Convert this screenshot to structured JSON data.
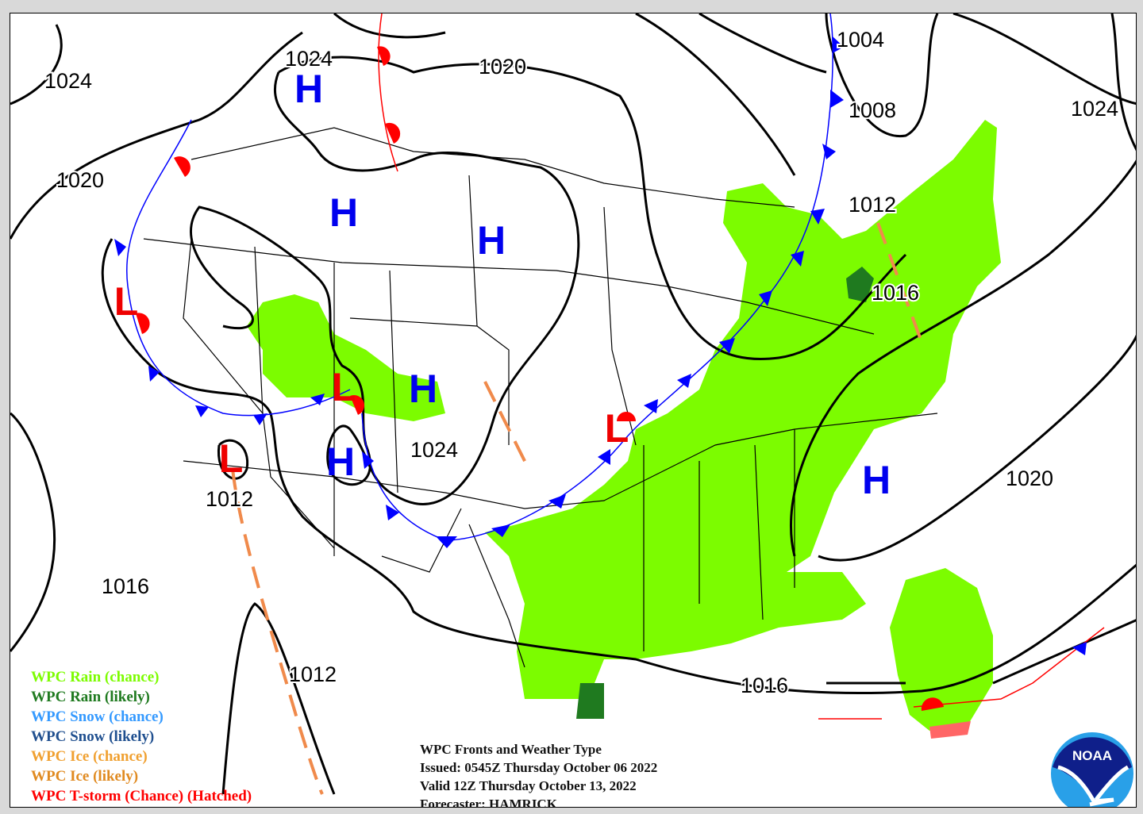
{
  "map_title": "WPC Fronts and Weather Type",
  "issued": "Issued: 0545Z Thursday October 06 2022",
  "valid": "Valid 12Z Thursday October 13, 2022",
  "forecaster": "Forecaster: HAMRICK",
  "logo_text": "NOAA",
  "legend": [
    {
      "label": "WPC Rain (chance)",
      "color": "#7cfc00"
    },
    {
      "label": "WPC Rain (likely)",
      "color": "#1f7a1f"
    },
    {
      "label": "WPC Snow (chance)",
      "color": "#3399ff"
    },
    {
      "label": "WPC Snow (likely)",
      "color": "#1f4f8f"
    },
    {
      "label": "WPC Ice (chance)",
      "color": "#f0a030"
    },
    {
      "label": "WPC Ice (likely)",
      "color": "#e08a20"
    },
    {
      "label": "WPC T-storm (Chance) (Hatched)",
      "color": "#ff0000"
    }
  ],
  "isobar_labels": [
    "1024",
    "1024",
    "1020",
    "1004",
    "1008",
    "1024",
    "1020",
    "1012",
    "1016",
    "1024",
    "1012",
    "1020",
    "1016",
    "1012",
    "1016"
  ],
  "pressure_centers": [
    {
      "type": "H"
    },
    {
      "type": "H"
    },
    {
      "type": "H"
    },
    {
      "type": "H"
    },
    {
      "type": "H"
    },
    {
      "type": "H"
    },
    {
      "type": "L"
    },
    {
      "type": "L"
    },
    {
      "type": "L"
    },
    {
      "type": "L"
    }
  ],
  "colors": {
    "high": "#0000ee",
    "low": "#ee0000",
    "isobar": "#000000",
    "cold_front": "#0000ff",
    "warm_front": "#ff0000",
    "trough": "#f08a4b",
    "rain_chance": "#7cfc00",
    "rain_likely": "#1f7a1f"
  }
}
